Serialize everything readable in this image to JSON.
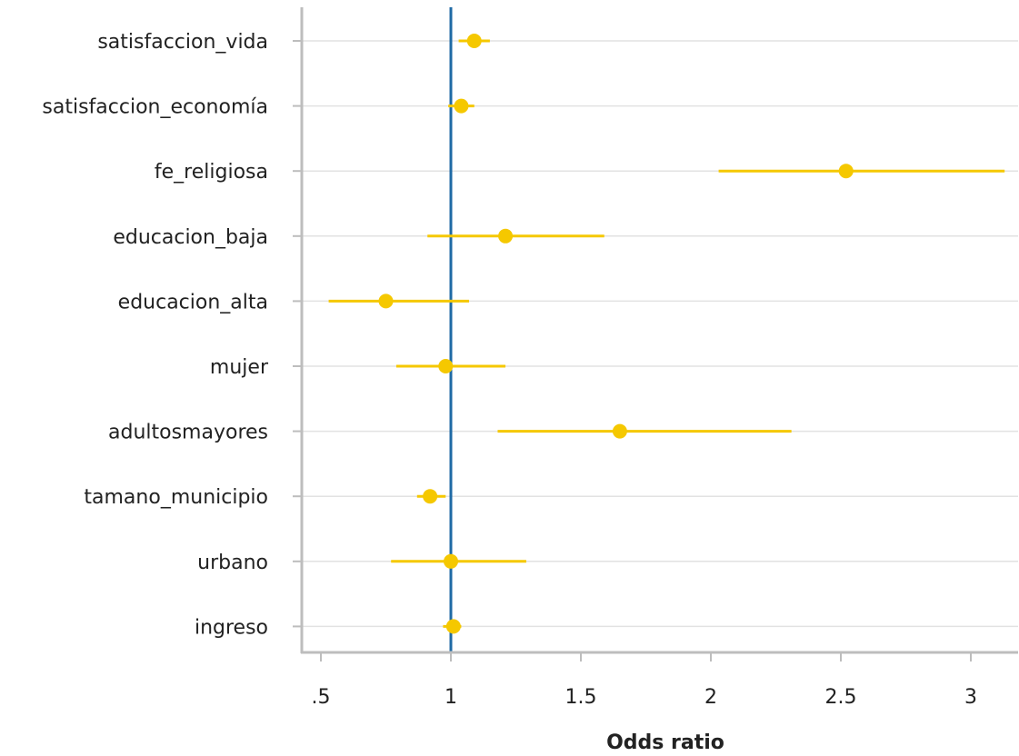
{
  "chart_data": {
    "type": "scatter",
    "title": "",
    "xlabel": "Odds ratio",
    "ylabel": "",
    "xlim": [
      0.45,
      3.18
    ],
    "xticks": [
      {
        "value": 0.5,
        "label": ".5"
      },
      {
        "value": 1,
        "label": "1"
      },
      {
        "value": 1.5,
        "label": "1.5"
      },
      {
        "value": 2,
        "label": "2"
      },
      {
        "value": 2.5,
        "label": "2.5"
      },
      {
        "value": 3,
        "label": "3"
      }
    ],
    "reference_line": 1,
    "grid": true,
    "categories": [
      "satisfaccion_vida",
      "satisfaccion_economía",
      "fe_religiosa",
      "educacion_baja",
      "educacion_alta",
      "mujer",
      "adultosmayores",
      "tamano_municipio",
      "urbano",
      "ingreso"
    ],
    "estimates": [
      1.09,
      1.04,
      2.52,
      1.21,
      0.75,
      0.98,
      1.65,
      0.92,
      1.0,
      1.01
    ],
    "ci_low": [
      1.03,
      0.99,
      2.03,
      0.91,
      0.53,
      0.79,
      1.18,
      0.87,
      0.77,
      0.97
    ],
    "ci_high": [
      1.15,
      1.09,
      3.13,
      1.59,
      1.07,
      1.21,
      2.31,
      0.98,
      1.29,
      1.04
    ]
  },
  "colors": {
    "point": "#f5c800",
    "reference_line": "#1f6aa5",
    "grid": "#e2e2e2",
    "axis": "#bdbdbd",
    "text": "#222222"
  }
}
